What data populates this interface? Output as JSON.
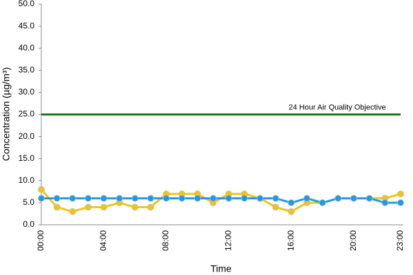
{
  "chart_data": {
    "type": "line",
    "y_label": "Concentration (µg/m³)",
    "x_label": "Time",
    "categories": [
      "00:00",
      null,
      null,
      null,
      "04:00",
      null,
      null,
      null,
      "08:00",
      null,
      null,
      null,
      "12:00",
      null,
      null,
      null,
      "16:00",
      null,
      null,
      null,
      "20:00",
      null,
      null,
      "23:00"
    ],
    "series": [
      {
        "color": "#f0c419",
        "values": [
          8,
          4,
          3,
          4,
          4,
          5,
          4,
          4,
          7,
          7,
          7,
          5,
          7,
          7,
          6,
          4,
          3,
          5,
          5,
          6,
          6,
          6,
          6,
          7
        ]
      },
      {
        "color": "#1e9be8",
        "values": [
          6,
          6,
          6,
          6,
          6,
          6,
          6,
          6,
          6,
          6,
          6,
          6,
          6,
          6,
          6,
          6,
          5,
          6,
          5,
          6,
          6,
          6,
          5,
          5
        ]
      }
    ],
    "reference_lines": [
      {
        "value": 25,
        "label": "24 Hour Air Quality Objective",
        "color": "#1b7a1b"
      }
    ],
    "ylim": [
      0,
      50
    ],
    "yticks": [
      {
        "value": 0,
        "label": "0.0"
      },
      {
        "value": 5,
        "label": "5.0"
      },
      {
        "value": 10,
        "label": "10.0"
      },
      {
        "value": 15,
        "label": "15.0"
      },
      {
        "value": 20,
        "label": "20.0"
      },
      {
        "value": 25,
        "label": "25.0"
      },
      {
        "value": 30,
        "label": "30.0"
      },
      {
        "value": 35,
        "label": "35.0"
      },
      {
        "value": 40,
        "label": "40.0"
      },
      {
        "value": 45,
        "label": "45.0"
      },
      {
        "value": 50,
        "label": "50.0"
      }
    ],
    "grid": false
  }
}
